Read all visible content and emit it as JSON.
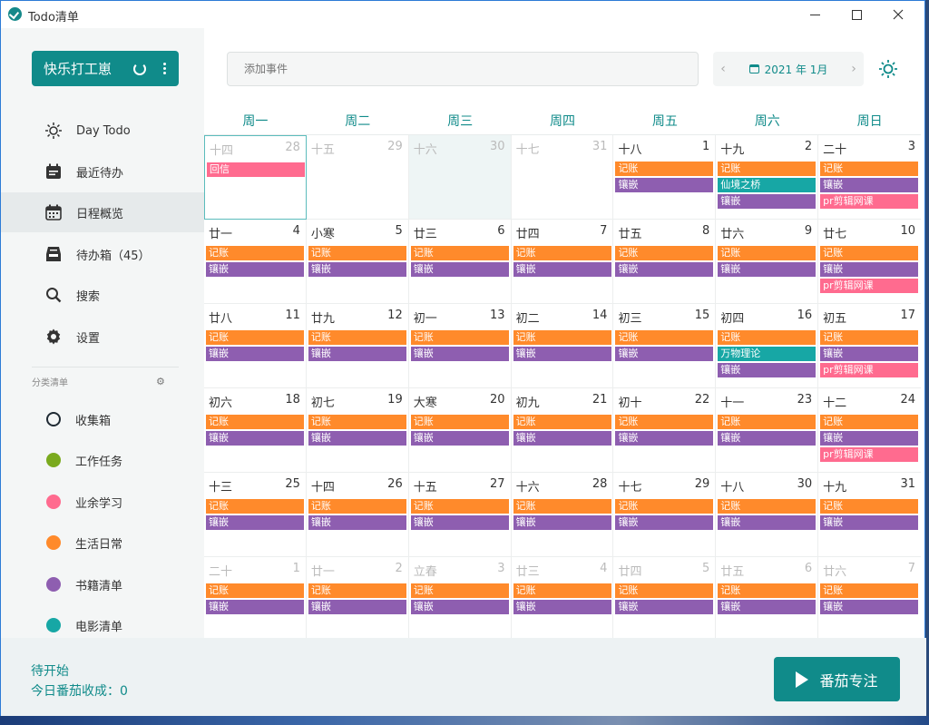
{
  "window": {
    "title": "Todo清单"
  },
  "colors": {
    "accent": "#108b8a",
    "orange": "#ff8a2b",
    "purple": "#8e5eb0",
    "pink": "#ff6b8f",
    "teal": "#17a7a5",
    "green": "#7aaa1e"
  },
  "sidebar": {
    "profile_name": "快乐打工崽",
    "nav": [
      {
        "label": "Day Todo",
        "icon": "sun-icon"
      },
      {
        "label": "最近待办",
        "icon": "calendar-list-icon"
      },
      {
        "label": "日程概览",
        "icon": "calendar-icon"
      },
      {
        "label": "待办箱（45）",
        "icon": "inbox-icon"
      },
      {
        "label": "搜索",
        "icon": "search-icon"
      },
      {
        "label": "设置",
        "icon": "gear-icon"
      }
    ],
    "section_title": "分类清单",
    "categories": [
      {
        "label": "收集箱",
        "color": "#1f2a33"
      },
      {
        "label": "工作任务",
        "color": "#7aaa1e"
      },
      {
        "label": "业余学习",
        "color": "#ff6b8f"
      },
      {
        "label": "生活日常",
        "color": "#ff8a2b"
      },
      {
        "label": "书籍清单",
        "color": "#8e5eb0"
      },
      {
        "label": "电影清单",
        "color": "#17a7a5"
      }
    ]
  },
  "header": {
    "search_placeholder": "添加事件",
    "month": "2021 年 1月"
  },
  "calendar": {
    "weekdays": [
      "周一",
      "周二",
      "周三",
      "周四",
      "周五",
      "周六",
      "周日"
    ],
    "weeks": [
      [
        {
          "lunar": "十四",
          "day": "28",
          "muted": true,
          "today": true,
          "events": [
            {
              "t": "回信",
              "c": "pink"
            }
          ]
        },
        {
          "lunar": "十五",
          "day": "29",
          "muted": true,
          "events": []
        },
        {
          "lunar": "十六",
          "day": "30",
          "muted": true,
          "shade": true,
          "events": []
        },
        {
          "lunar": "十七",
          "day": "31",
          "muted": true,
          "events": []
        },
        {
          "lunar": "十八",
          "day": "1",
          "events": [
            {
              "t": "记账",
              "c": "orange"
            },
            {
              "t": "镶嵌",
              "c": "purple"
            }
          ]
        },
        {
          "lunar": "十九",
          "day": "2",
          "events": [
            {
              "t": "记账",
              "c": "orange"
            },
            {
              "t": "仙境之桥",
              "c": "teal"
            },
            {
              "t": "镶嵌",
              "c": "purple"
            }
          ]
        },
        {
          "lunar": "二十",
          "day": "3",
          "events": [
            {
              "t": "记账",
              "c": "orange"
            },
            {
              "t": "镶嵌",
              "c": "purple"
            },
            {
              "t": "pr剪辑网课",
              "c": "pink"
            }
          ]
        }
      ],
      [
        {
          "lunar": "廿一",
          "day": "4",
          "events": [
            {
              "t": "记账",
              "c": "orange"
            },
            {
              "t": "镶嵌",
              "c": "purple"
            }
          ]
        },
        {
          "lunar": "小寒",
          "day": "5",
          "events": [
            {
              "t": "记账",
              "c": "orange"
            },
            {
              "t": "镶嵌",
              "c": "purple"
            }
          ]
        },
        {
          "lunar": "廿三",
          "day": "6",
          "events": [
            {
              "t": "记账",
              "c": "orange"
            },
            {
              "t": "镶嵌",
              "c": "purple"
            }
          ]
        },
        {
          "lunar": "廿四",
          "day": "7",
          "events": [
            {
              "t": "记账",
              "c": "orange"
            },
            {
              "t": "镶嵌",
              "c": "purple"
            }
          ]
        },
        {
          "lunar": "廿五",
          "day": "8",
          "events": [
            {
              "t": "记账",
              "c": "orange"
            },
            {
              "t": "镶嵌",
              "c": "purple"
            }
          ]
        },
        {
          "lunar": "廿六",
          "day": "9",
          "events": [
            {
              "t": "记账",
              "c": "orange"
            },
            {
              "t": "镶嵌",
              "c": "purple"
            }
          ]
        },
        {
          "lunar": "廿七",
          "day": "10",
          "events": [
            {
              "t": "记账",
              "c": "orange"
            },
            {
              "t": "镶嵌",
              "c": "purple"
            },
            {
              "t": "pr剪辑网课",
              "c": "pink"
            }
          ]
        }
      ],
      [
        {
          "lunar": "廿八",
          "day": "11",
          "events": [
            {
              "t": "记账",
              "c": "orange"
            },
            {
              "t": "镶嵌",
              "c": "purple"
            }
          ]
        },
        {
          "lunar": "廿九",
          "day": "12",
          "events": [
            {
              "t": "记账",
              "c": "orange"
            },
            {
              "t": "镶嵌",
              "c": "purple"
            }
          ]
        },
        {
          "lunar": "初一",
          "day": "13",
          "events": [
            {
              "t": "记账",
              "c": "orange"
            },
            {
              "t": "镶嵌",
              "c": "purple"
            }
          ]
        },
        {
          "lunar": "初二",
          "day": "14",
          "events": [
            {
              "t": "记账",
              "c": "orange"
            },
            {
              "t": "镶嵌",
              "c": "purple"
            }
          ]
        },
        {
          "lunar": "初三",
          "day": "15",
          "events": [
            {
              "t": "记账",
              "c": "orange"
            },
            {
              "t": "镶嵌",
              "c": "purple"
            }
          ]
        },
        {
          "lunar": "初四",
          "day": "16",
          "events": [
            {
              "t": "记账",
              "c": "orange"
            },
            {
              "t": "万物理论",
              "c": "teal"
            },
            {
              "t": "镶嵌",
              "c": "purple"
            }
          ]
        },
        {
          "lunar": "初五",
          "day": "17",
          "events": [
            {
              "t": "记账",
              "c": "orange"
            },
            {
              "t": "镶嵌",
              "c": "purple"
            },
            {
              "t": "pr剪辑网课",
              "c": "pink"
            }
          ]
        }
      ],
      [
        {
          "lunar": "初六",
          "day": "18",
          "events": [
            {
              "t": "记账",
              "c": "orange"
            },
            {
              "t": "镶嵌",
              "c": "purple"
            }
          ]
        },
        {
          "lunar": "初七",
          "day": "19",
          "events": [
            {
              "t": "记账",
              "c": "orange"
            },
            {
              "t": "镶嵌",
              "c": "purple"
            }
          ]
        },
        {
          "lunar": "大寒",
          "day": "20",
          "events": [
            {
              "t": "记账",
              "c": "orange"
            },
            {
              "t": "镶嵌",
              "c": "purple"
            }
          ]
        },
        {
          "lunar": "初九",
          "day": "21",
          "events": [
            {
              "t": "记账",
              "c": "orange"
            },
            {
              "t": "镶嵌",
              "c": "purple"
            }
          ]
        },
        {
          "lunar": "初十",
          "day": "22",
          "events": [
            {
              "t": "记账",
              "c": "orange"
            },
            {
              "t": "镶嵌",
              "c": "purple"
            }
          ]
        },
        {
          "lunar": "十一",
          "day": "23",
          "events": [
            {
              "t": "记账",
              "c": "orange"
            },
            {
              "t": "镶嵌",
              "c": "purple"
            }
          ]
        },
        {
          "lunar": "十二",
          "day": "24",
          "events": [
            {
              "t": "记账",
              "c": "orange"
            },
            {
              "t": "镶嵌",
              "c": "purple"
            },
            {
              "t": "pr剪辑网课",
              "c": "pink"
            }
          ]
        }
      ],
      [
        {
          "lunar": "十三",
          "day": "25",
          "events": [
            {
              "t": "记账",
              "c": "orange"
            },
            {
              "t": "镶嵌",
              "c": "purple"
            }
          ]
        },
        {
          "lunar": "十四",
          "day": "26",
          "events": [
            {
              "t": "记账",
              "c": "orange"
            },
            {
              "t": "镶嵌",
              "c": "purple"
            }
          ]
        },
        {
          "lunar": "十五",
          "day": "27",
          "events": [
            {
              "t": "记账",
              "c": "orange"
            },
            {
              "t": "镶嵌",
              "c": "purple"
            }
          ]
        },
        {
          "lunar": "十六",
          "day": "28",
          "events": [
            {
              "t": "记账",
              "c": "orange"
            },
            {
              "t": "镶嵌",
              "c": "purple"
            }
          ]
        },
        {
          "lunar": "十七",
          "day": "29",
          "events": [
            {
              "t": "记账",
              "c": "orange"
            },
            {
              "t": "镶嵌",
              "c": "purple"
            }
          ]
        },
        {
          "lunar": "十八",
          "day": "30",
          "events": [
            {
              "t": "记账",
              "c": "orange"
            },
            {
              "t": "镶嵌",
              "c": "purple"
            }
          ]
        },
        {
          "lunar": "十九",
          "day": "31",
          "events": [
            {
              "t": "记账",
              "c": "orange"
            },
            {
              "t": "镶嵌",
              "c": "purple"
            }
          ]
        }
      ],
      [
        {
          "lunar": "二十",
          "day": "1",
          "muted": true,
          "events": [
            {
              "t": "记账",
              "c": "orange"
            },
            {
              "t": "镶嵌",
              "c": "purple"
            }
          ]
        },
        {
          "lunar": "廿一",
          "day": "2",
          "muted": true,
          "events": [
            {
              "t": "记账",
              "c": "orange"
            },
            {
              "t": "镶嵌",
              "c": "purple"
            }
          ]
        },
        {
          "lunar": "立春",
          "day": "3",
          "muted": true,
          "events": [
            {
              "t": "记账",
              "c": "orange"
            },
            {
              "t": "镶嵌",
              "c": "purple"
            }
          ]
        },
        {
          "lunar": "廿三",
          "day": "4",
          "muted": true,
          "events": [
            {
              "t": "记账",
              "c": "orange"
            },
            {
              "t": "镶嵌",
              "c": "purple"
            }
          ]
        },
        {
          "lunar": "廿四",
          "day": "5",
          "muted": true,
          "events": [
            {
              "t": "记账",
              "c": "orange"
            },
            {
              "t": "镶嵌",
              "c": "purple"
            }
          ]
        },
        {
          "lunar": "廿五",
          "day": "6",
          "muted": true,
          "events": [
            {
              "t": "记账",
              "c": "orange"
            },
            {
              "t": "镶嵌",
              "c": "purple"
            }
          ]
        },
        {
          "lunar": "廿六",
          "day": "7",
          "muted": true,
          "events": [
            {
              "t": "记账",
              "c": "orange"
            },
            {
              "t": "镶嵌",
              "c": "purple"
            }
          ]
        }
      ]
    ]
  },
  "footer": {
    "status": "待开始",
    "harvest": "今日番茄收成：0",
    "focus_label": "番茄专注"
  }
}
